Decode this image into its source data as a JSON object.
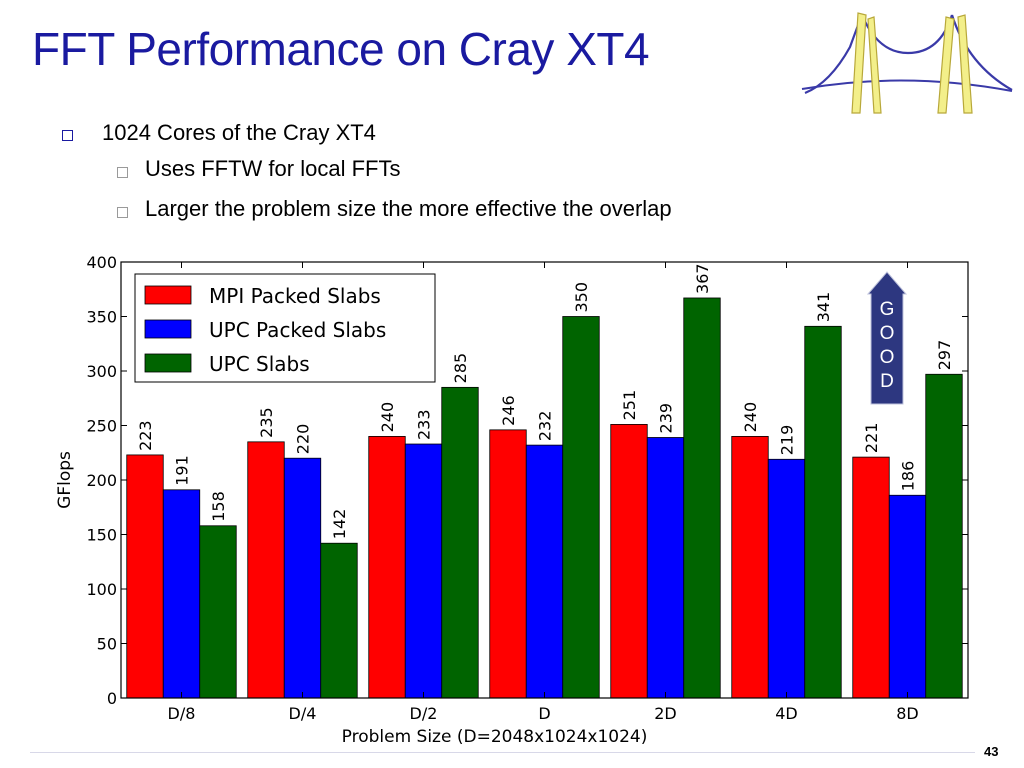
{
  "slide": {
    "title": "FFT Performance on Cray XT4",
    "bullets": [
      {
        "text": "1024 Cores of the Cray XT4",
        "level": 1
      },
      {
        "text": "Uses FFTW for local FFTs",
        "level": 2
      },
      {
        "text": "Larger the problem size the more effective the overlap",
        "level": 2
      }
    ],
    "page_number": "43",
    "logo_icon": "bridge-logo-icon"
  },
  "callout": {
    "letters": [
      "G",
      "O",
      "O",
      "D"
    ],
    "fill": "#2d3780",
    "text_color": "#ffffff",
    "icon": "up-arrow-icon"
  },
  "chart_data": {
    "type": "bar",
    "categories": [
      "D/8",
      "D/4",
      "D/2",
      "D",
      "2D",
      "4D",
      "8D"
    ],
    "series": [
      {
        "name": "MPI Packed Slabs",
        "color": "#ff0000",
        "values": [
          223,
          235,
          240,
          246,
          251,
          240,
          221
        ]
      },
      {
        "name": "UPC Packed Slabs",
        "color": "#0000ff",
        "values": [
          191,
          220,
          233,
          232,
          239,
          219,
          186
        ]
      },
      {
        "name": "UPC Slabs",
        "color": "#006400",
        "values": [
          158,
          142,
          285,
          350,
          367,
          341,
          297
        ]
      }
    ],
    "title": "",
    "xlabel": "Problem Size (D=2048x1024x1024)",
    "ylabel": "GFlops",
    "ylim": [
      0,
      400
    ],
    "yticks": [
      0,
      50,
      100,
      150,
      200,
      250,
      300,
      350,
      400
    ],
    "grid": false,
    "legend_position": "top-left",
    "data_labels": "rotated above bars"
  }
}
